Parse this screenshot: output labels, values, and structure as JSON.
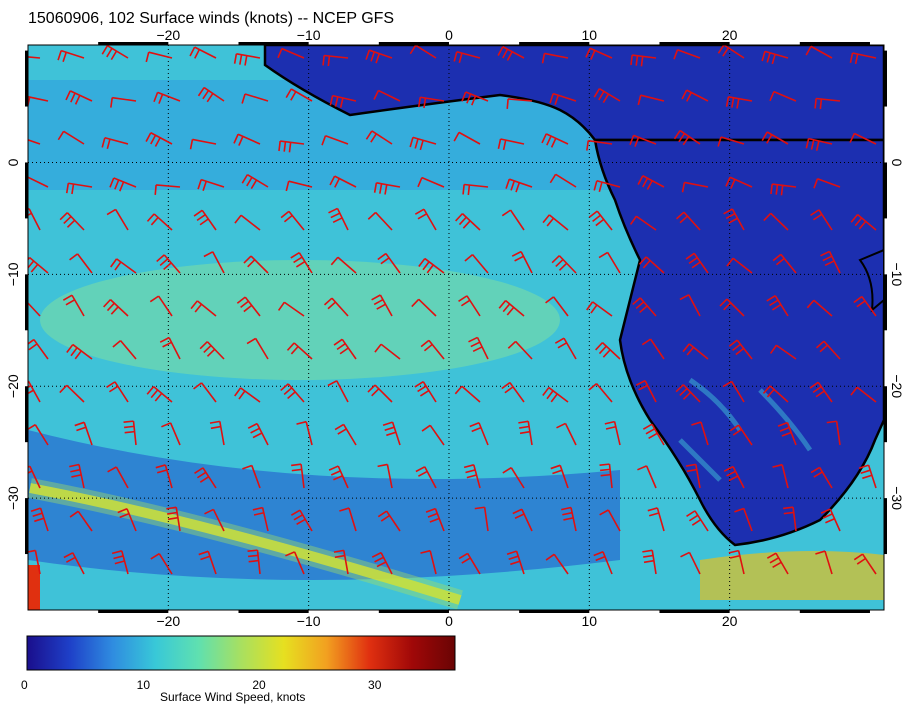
{
  "title": "15060906, 102 Surface winds (knots) -- NCEP GFS",
  "colorbar": {
    "title": "Surface Wind Speed, knots",
    "ticks": [
      "0",
      "10",
      "20",
      "30"
    ],
    "min": 0,
    "max": 37,
    "stops": [
      "#1a0e8c",
      "#1e40c8",
      "#2f8ce0",
      "#38c8d8",
      "#5fe0b0",
      "#a8e060",
      "#e6e020",
      "#f2a020",
      "#e03010",
      "#a00808",
      "#6a0404"
    ]
  },
  "map": {
    "lon_labels": [
      "−20",
      "−10",
      "0",
      "10",
      "20"
    ],
    "lat_labels": [
      "0",
      "−10",
      "−20",
      "−30"
    ],
    "lon_range": [
      -30,
      31
    ],
    "lat_range": [
      -40,
      10.5
    ],
    "gridlines": true,
    "barb_color": "#e01010",
    "coast_color": "#000000",
    "ocean_color": "#3fc2d8",
    "land_color": "#1c2fb0"
  }
}
